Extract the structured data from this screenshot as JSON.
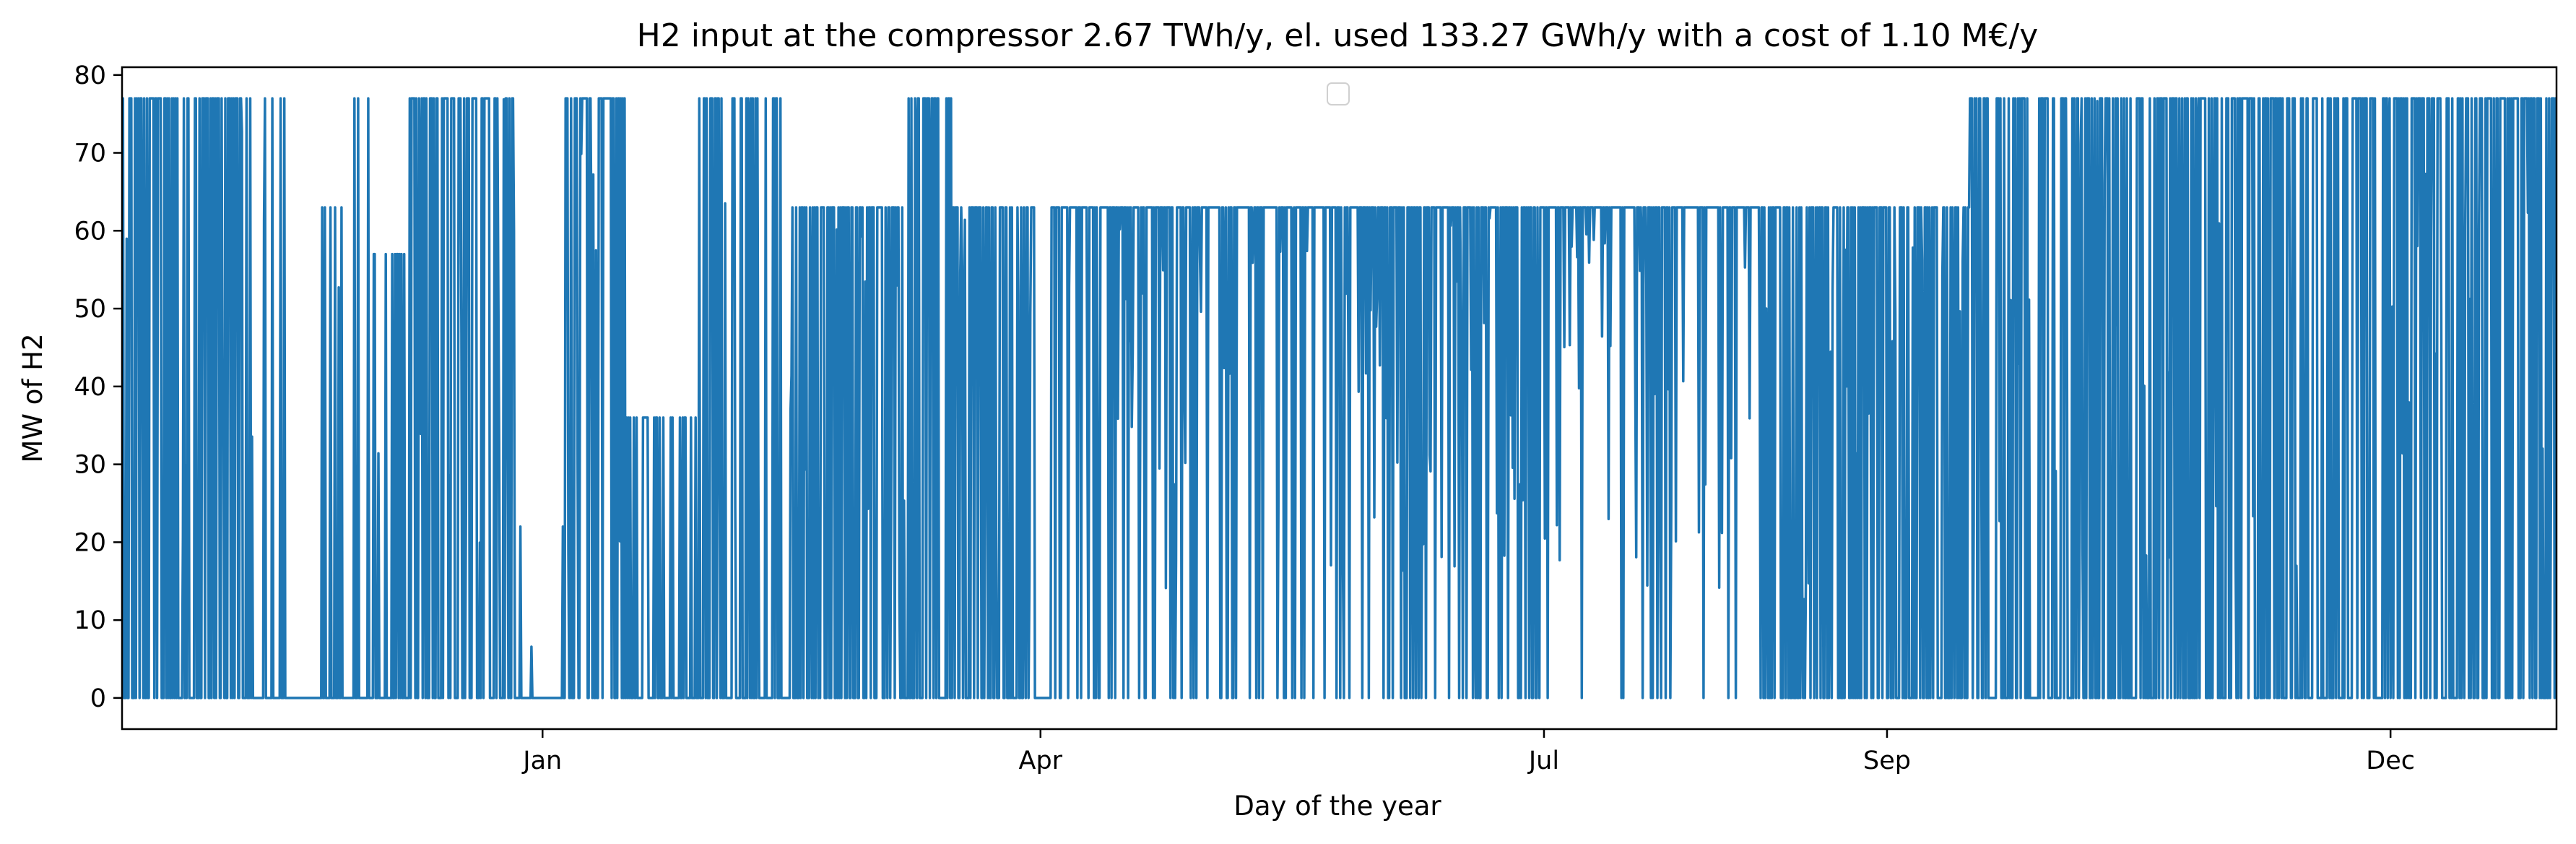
{
  "chart_data": {
    "type": "line",
    "title": "H2 input at the compressor 2.67 TWh/y, el. used 133.27 GWh/y with a cost of 1.10 M€/y",
    "xlabel": "Day of the year",
    "ylabel": "MW of H2",
    "xlim": [
      "2022-10-17",
      "2023-12-31"
    ],
    "ylim": [
      -4,
      81
    ],
    "x_ticks": [
      {
        "label": "Jan",
        "date": "2023-01-01"
      },
      {
        "label": "Apr",
        "date": "2023-04-01"
      },
      {
        "label": "Jul",
        "date": "2023-07-01"
      },
      {
        "label": "Sep",
        "date": "2023-09-01"
      },
      {
        "label": "Dec",
        "date": "2023-12-01"
      }
    ],
    "y_ticks": [
      0,
      10,
      20,
      30,
      40,
      50,
      60,
      70,
      80
    ],
    "legend": {
      "placement": "upper center",
      "entries": []
    },
    "grid": false,
    "series": [
      {
        "color": "#1f77b4",
        "sampling": "approximate hourly operating levels (MW) by date segment",
        "segments": [
          {
            "start": "2022-10-17",
            "end": "2022-11-08",
            "max": 77,
            "density": 0.55
          },
          {
            "start": "2022-11-08",
            "end": "2022-11-16",
            "max": 77,
            "density": 0.2
          },
          {
            "start": "2022-11-16",
            "end": "2022-11-22",
            "max": 0,
            "density": 0
          },
          {
            "start": "2022-11-22",
            "end": "2022-11-26",
            "max": 63,
            "density": 0.2
          },
          {
            "start": "2022-11-26",
            "end": "2022-12-01",
            "max": 77,
            "density": 0.25
          },
          {
            "start": "2022-12-01",
            "end": "2022-12-08",
            "max": 57,
            "density": 0.15
          },
          {
            "start": "2022-12-08",
            "end": "2022-12-27",
            "max": 77,
            "density": 0.5
          },
          {
            "start": "2022-12-27",
            "end": "2023-01-05",
            "max": 22,
            "density": 0.1
          },
          {
            "start": "2023-01-05",
            "end": "2023-01-16",
            "max": 77,
            "density": 0.55
          },
          {
            "start": "2023-01-16",
            "end": "2023-01-29",
            "max": 36,
            "density": 0.25
          },
          {
            "start": "2023-01-29",
            "end": "2023-02-15",
            "max": 77,
            "density": 0.4
          },
          {
            "start": "2023-02-15",
            "end": "2023-03-08",
            "max": 63,
            "density": 0.55
          },
          {
            "start": "2023-03-08",
            "end": "2023-03-16",
            "max": 77,
            "density": 0.4
          },
          {
            "start": "2023-03-16",
            "end": "2023-03-31",
            "max": 63,
            "density": 0.6
          },
          {
            "start": "2023-03-31",
            "end": "2023-04-03",
            "max": 0,
            "density": 0
          },
          {
            "start": "2023-04-03",
            "end": "2023-06-30",
            "max": 63,
            "density": 0.85
          },
          {
            "start": "2023-06-30",
            "end": "2023-08-09",
            "max": 63,
            "density": 0.95
          },
          {
            "start": "2023-08-09",
            "end": "2023-09-01",
            "max": 63,
            "density": 0.6
          },
          {
            "start": "2023-09-01",
            "end": "2023-09-16",
            "max": 63,
            "density": 0.5
          },
          {
            "start": "2023-09-16",
            "end": "2023-10-24",
            "max": 77,
            "density": 0.5
          },
          {
            "start": "2023-10-24",
            "end": "2023-11-28",
            "max": 77,
            "density": 0.55
          },
          {
            "start": "2023-11-28",
            "end": "2023-12-31",
            "max": 77,
            "density": 0.6
          }
        ]
      }
    ]
  }
}
